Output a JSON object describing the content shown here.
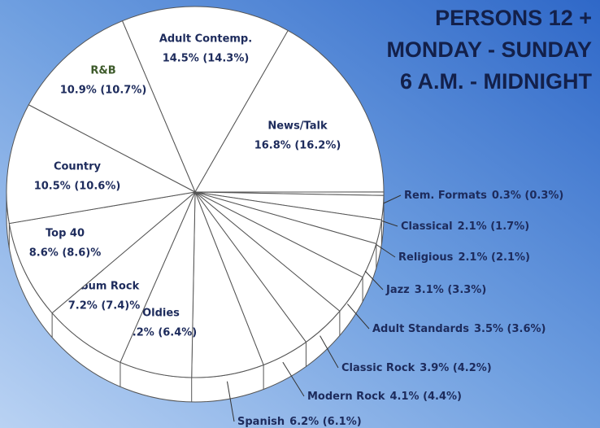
{
  "chart_data": {
    "type": "pie",
    "title": "PERSONS 12 +",
    "subtitle": [
      "MONDAY - SUNDAY",
      "6 A.M. - MIDNIGHT"
    ],
    "categories": [
      "Adult Contemp.",
      "News/Talk",
      "Rem. Formats",
      "Classical",
      "Religious",
      "Jazz",
      "Adult Standards",
      "Classic Rock",
      "Modern Rock",
      "Spanish",
      "Oldies",
      "Album Rock",
      "Top 40",
      "Country",
      "R&B"
    ],
    "values": [
      14.5,
      16.8,
      0.3,
      2.1,
      2.1,
      3.1,
      3.5,
      3.9,
      4.1,
      6.2,
      6.2,
      7.2,
      8.6,
      10.5,
      10.9
    ],
    "value_labels": [
      "14.5% (14.3%)",
      "16.8% (16.2%)",
      "0.3% (0.3%)",
      "2.1% (1.7%)",
      "2.1% (2.1%)",
      "3.1% (3.3%)",
      "3.5% (3.6%)",
      "3.9% (4.2%)",
      "4.1% (4.4%)",
      "6.2% (6.1%)",
      "6.2% (6.4%)",
      "7.2% (7.4)%",
      "8.6% (8.6)%",
      "10.5% (10.6%)",
      "10.9% (10.7%)"
    ],
    "color": "#ffffff"
  }
}
